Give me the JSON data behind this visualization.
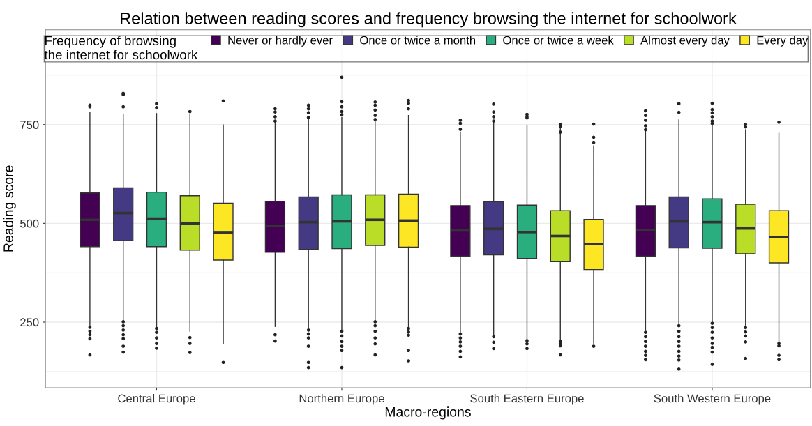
{
  "chart_data": {
    "type": "box",
    "title": "Relation between reading scores and frequency browsing the internet for schoolwork",
    "xlabel": "Macro-regions",
    "ylabel": "Reading score",
    "legend_title": "Frequency of browsing\nthe internet for schoolwork",
    "legend": "top",
    "grid": true,
    "ylim": [
      84,
      990
    ],
    "yticks": [
      250,
      500,
      750
    ],
    "categories": [
      "Central Europe",
      "Northern Europe",
      "South Eastern Europe",
      "South Western Europe"
    ],
    "series": [
      {
        "name": "Never or hardly ever",
        "color": "#440154",
        "boxes": [
          {
            "low": 241,
            "q1": 441,
            "median": 509,
            "q3": 577,
            "high": 780,
            "outliers": [
              799,
              795,
              237,
              227,
              218,
              208,
              167
            ]
          },
          {
            "low": 239,
            "q1": 427,
            "median": 494,
            "q3": 556,
            "high": 756,
            "outliers": [
              790,
              782,
              770,
              759,
              218,
              202
            ]
          },
          {
            "low": 225,
            "q1": 417,
            "median": 482,
            "q3": 545,
            "high": 731,
            "outliers": [
              761,
              753,
              738,
              220,
              210,
              200,
              189,
              176,
              162
            ]
          },
          {
            "low": 229,
            "q1": 417,
            "median": 483,
            "q3": 545,
            "high": 734,
            "outliers": [
              785,
              773,
              761,
              747,
              737,
              224,
              213,
              201,
              189,
              176,
              166,
              155
            ]
          }
        ]
      },
      {
        "name": "Once or twice a month",
        "color": "#443a83",
        "boxes": [
          {
            "low": 254,
            "q1": 456,
            "median": 526,
            "q3": 590,
            "high": 775,
            "outliers": [
              829,
              826,
              795,
              251,
              241,
              230,
              218,
              208,
              189,
              174
            ]
          },
          {
            "low": 236,
            "q1": 434,
            "median": 503,
            "q3": 567,
            "high": 765,
            "outliers": [
              799,
              790,
              780,
              768,
              230,
              220,
              210,
              189,
              148,
              135
            ]
          },
          {
            "low": 218,
            "q1": 420,
            "median": 486,
            "q3": 555,
            "high": 754,
            "outliers": [
              802,
              782,
              770,
              759,
              213,
              199,
              183
            ]
          },
          {
            "low": 244,
            "q1": 438,
            "median": 505,
            "q3": 567,
            "high": 762,
            "outliers": [
              803,
              781,
              241,
              227,
              213,
              201,
              189,
              176,
              164,
              154,
              131
            ]
          }
        ]
      },
      {
        "name": "Once or twice a week",
        "color": "#2aae80",
        "boxes": [
          {
            "low": 237,
            "q1": 441,
            "median": 512,
            "q3": 579,
            "high": 778,
            "outliers": [
              803,
              793,
              234,
              224,
              210,
              196,
              184
            ]
          },
          {
            "low": 230,
            "q1": 436,
            "median": 505,
            "q3": 572,
            "high": 768,
            "outliers": [
              870,
              808,
              795,
              783,
              775,
              227,
              215,
              201,
              189,
              178,
              135
            ]
          },
          {
            "low": 206,
            "q1": 411,
            "median": 478,
            "q3": 546,
            "high": 747,
            "outliers": [
              776,
              771,
              767,
              203,
              195,
              183
            ]
          },
          {
            "low": 251,
            "q1": 437,
            "median": 503,
            "q3": 562,
            "high": 750,
            "outliers": [
              804,
              788,
              780,
              770,
              759,
              753,
              247,
              236,
              224,
              210,
              196,
              186,
              174,
              143
            ]
          }
        ]
      },
      {
        "name": "Almost every day",
        "color": "#bade28",
        "boxes": [
          {
            "low": 227,
            "q1": 432,
            "median": 500,
            "q3": 570,
            "high": 775,
            "outliers": [
              783,
              211,
              196,
              173
            ]
          },
          {
            "low": 253,
            "q1": 444,
            "median": 509,
            "q3": 572,
            "high": 758,
            "outliers": [
              807,
              799,
              787,
              773,
              763,
              251,
              241,
              227,
              210,
              195,
              167
            ]
          },
          {
            "low": 206,
            "q1": 403,
            "median": 468,
            "q3": 532,
            "high": 744,
            "outliers": [
              750,
              746,
              731,
              201,
              196,
              190,
              167
            ]
          },
          {
            "low": 238,
            "q1": 423,
            "median": 487,
            "q3": 548,
            "high": 737,
            "outliers": [
              750,
              744,
              236,
              225,
              215,
              200,
              158
            ]
          }
        ]
      },
      {
        "name": "Every day",
        "color": "#fde725",
        "boxes": [
          {
            "low": 195,
            "q1": 407,
            "median": 476,
            "q3": 551,
            "high": 749,
            "outliers": [
              810,
              148
            ]
          },
          {
            "low": 237,
            "q1": 440,
            "median": 507,
            "q3": 574,
            "high": 773,
            "outliers": [
              811,
              804,
              790,
              234,
              225,
              217,
              178,
              152
            ]
          },
          {
            "low": 197,
            "q1": 383,
            "median": 448,
            "q3": 510,
            "high": 696,
            "outliers": [
              751,
              718,
              705,
              189
            ]
          },
          {
            "low": 200,
            "q1": 400,
            "median": 465,
            "q3": 532,
            "high": 728,
            "outliers": [
              756,
              196,
              190,
              166,
              155
            ]
          }
        ]
      }
    ]
  }
}
